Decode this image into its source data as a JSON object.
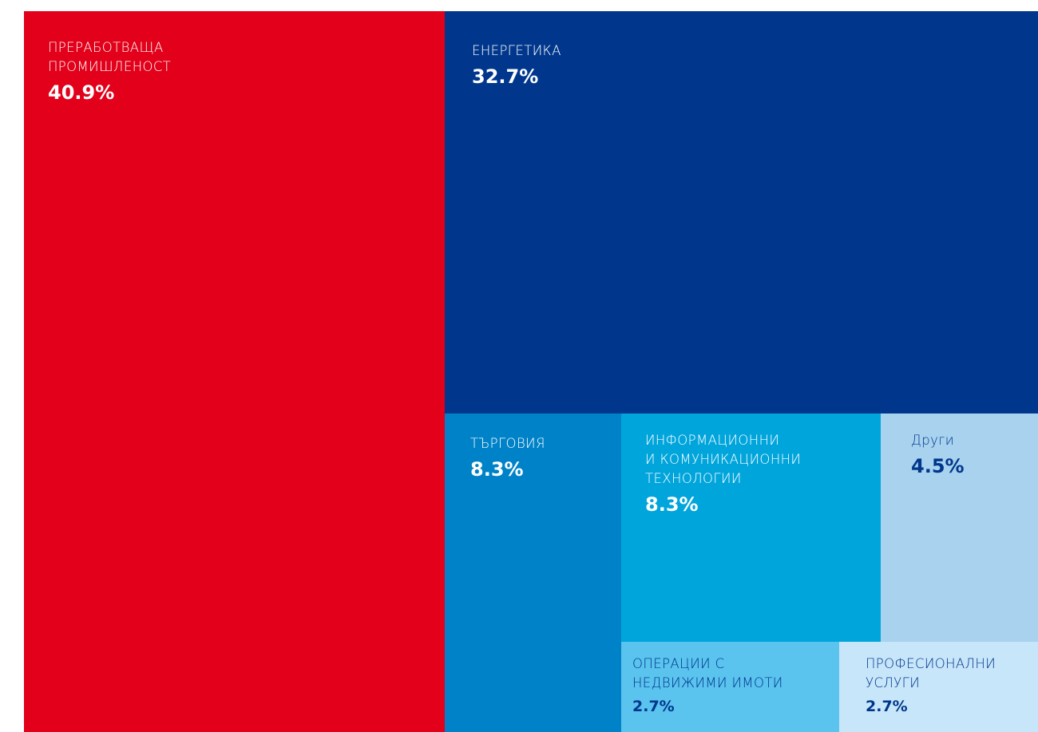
{
  "chart_data": {
    "type": "treemap",
    "title": "",
    "items": [
      {
        "label": "ПРЕРАБОТВАЩА\nПРОМИШЛЕНОСТ",
        "value": 40.9,
        "value_label": "40.9%",
        "color": "#E2001A",
        "text_color": "#ffffff"
      },
      {
        "label": "ЕНЕРГЕТИКА",
        "value": 32.7,
        "value_label": "32.7%",
        "color": "#00378C",
        "text_color": "#ffffff"
      },
      {
        "label": "ТЪРГОВИЯ",
        "value": 8.3,
        "value_label": "8.3%",
        "color": "#0082C8",
        "text_color": "#ffffff"
      },
      {
        "label": "ИНФОРМАЦИОННИ\nИ КОМУНИКАЦИОННИ\nТЕХНОЛОГИИ",
        "value": 8.3,
        "value_label": "8.3%",
        "color": "#00A5DC",
        "text_color": "#ffffff"
      },
      {
        "label": "Други",
        "value": 4.5,
        "value_label": "4.5%",
        "color": "#A8D2EE",
        "text_color": "#00378C"
      },
      {
        "label": "ОПЕРАЦИИ С\nНЕДВИЖИМИ ИМОТИ",
        "value": 2.7,
        "value_label": "2.7%",
        "color": "#5AC3EE",
        "text_color": "#00378C"
      },
      {
        "label": "ПРОФЕСИОНАЛНИ\nУСЛУГИ",
        "value": 2.7,
        "value_label": "2.7%",
        "color": "#C8E6FA",
        "text_color": "#00378C"
      }
    ]
  }
}
